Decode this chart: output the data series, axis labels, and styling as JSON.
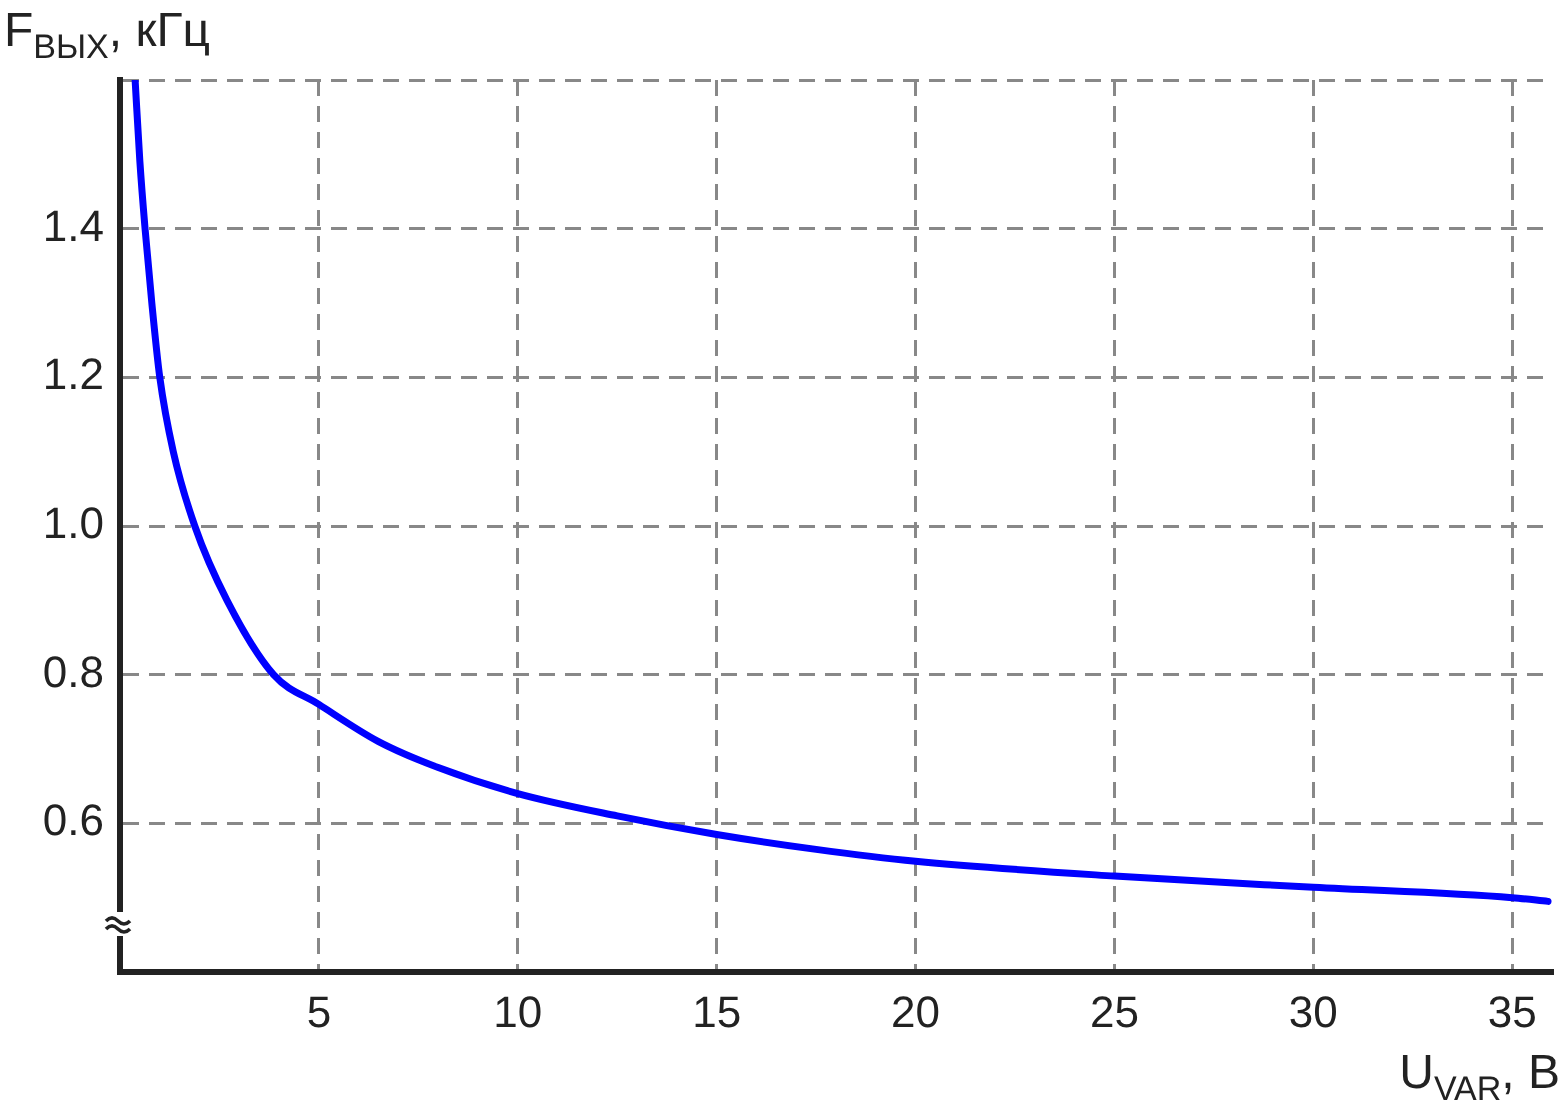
{
  "chart_data": {
    "type": "line",
    "xlabel": "U$_{VAR}$, В",
    "ylabel": "F$_{ВЫХ}$, кГц",
    "x": [
      0.38,
      0.5,
      0.63,
      0.8,
      1.0,
      1.34,
      1.88,
      2.69,
      3.86,
      5,
      6.5,
      8,
      10,
      12.5,
      15,
      17.5,
      20,
      25,
      30,
      35,
      35.9
    ],
    "series": [
      {
        "color": "#0000ff",
        "values": [
          1.6,
          1.49,
          1.4,
          1.3,
          1.2,
          1.1,
          1.0,
          0.9,
          0.8,
          0.76,
          0.71,
          0.675,
          0.64,
          0.61,
          0.585,
          0.565,
          0.549,
          0.529,
          0.514,
          0.5,
          0.495
        ]
      }
    ],
    "xlim": [
      0,
      36
    ],
    "xticks": [
      5,
      10,
      15,
      20,
      25,
      30,
      35
    ],
    "ylim": [
      0.4,
      1.6
    ],
    "yticks": [
      0.6,
      0.8,
      {
        "value": 1.0,
        "label": "1.0"
      },
      1.2,
      1.4,
      {
        "value": 1.6,
        "label": null
      }
    ],
    "grid": true,
    "legend": false,
    "marker": "none",
    "line_style": "solid"
  }
}
